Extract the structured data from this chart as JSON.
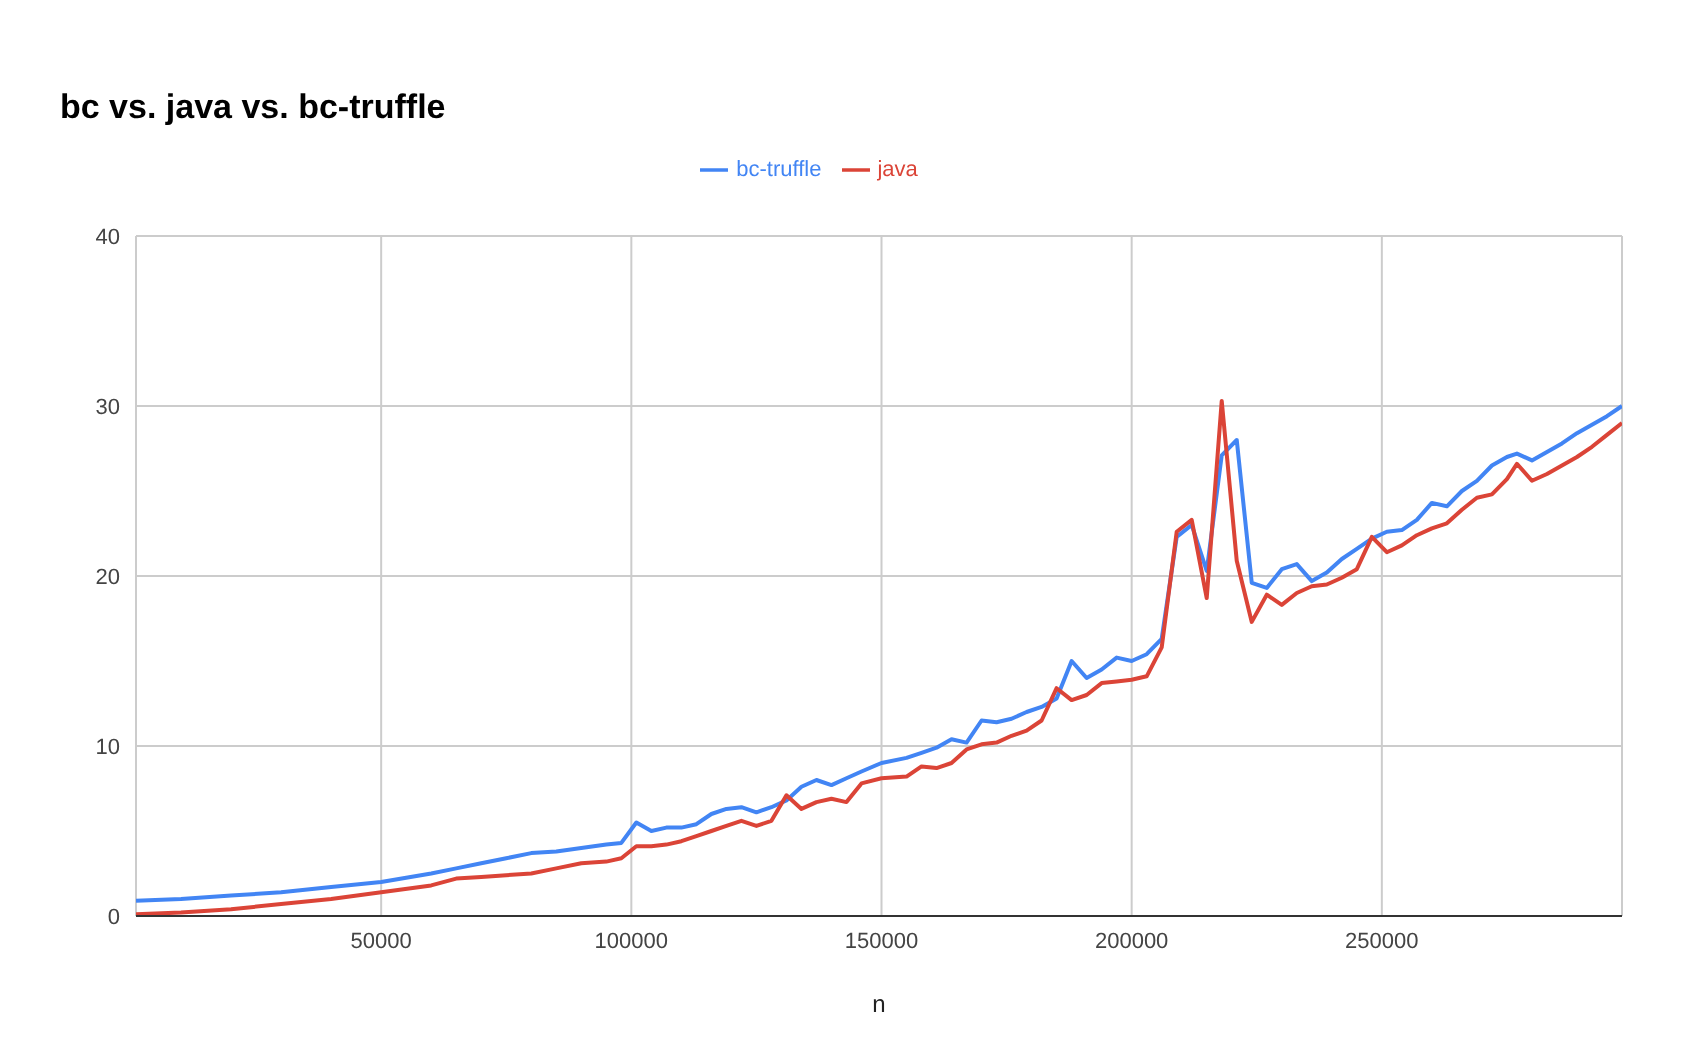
{
  "chart_data": {
    "type": "line",
    "title": "bc vs. java vs. bc-truffle",
    "xlabel": "n",
    "x": [
      1000,
      10000,
      20000,
      30000,
      40000,
      50000,
      60000,
      65000,
      70000,
      75000,
      80000,
      85000,
      90000,
      95000,
      98000,
      101000,
      104000,
      107000,
      110000,
      113000,
      116000,
      119000,
      122000,
      125000,
      128000,
      131000,
      134000,
      137000,
      140000,
      143000,
      146000,
      150000,
      155000,
      158000,
      161000,
      164000,
      167000,
      170000,
      173000,
      176000,
      179000,
      182000,
      185000,
      188000,
      191000,
      194000,
      197000,
      200000,
      203000,
      206000,
      209000,
      212000,
      215000,
      218000,
      221000,
      224000,
      227000,
      230000,
      233000,
      236000,
      239000,
      242000,
      245000,
      248000,
      251000,
      254000,
      257000,
      260000,
      263000,
      266000,
      269000,
      272000,
      275000,
      277000,
      280000,
      283000,
      286000,
      289000,
      292000,
      295000,
      298000
    ],
    "series": [
      {
        "name": "bc-truffle",
        "color": "#4285f4",
        "values": [
          0.9,
          1.0,
          1.2,
          1.4,
          1.7,
          2.0,
          2.5,
          2.8,
          3.1,
          3.4,
          3.7,
          3.8,
          4.0,
          4.2,
          4.3,
          5.5,
          5.0,
          5.2,
          5.2,
          5.4,
          6.0,
          6.3,
          6.4,
          6.1,
          6.4,
          6.8,
          7.6,
          8.0,
          7.7,
          8.1,
          8.5,
          9.0,
          9.3,
          9.6,
          9.9,
          10.4,
          10.2,
          11.5,
          11.4,
          11.6,
          12.0,
          12.3,
          12.8,
          15.0,
          14.0,
          14.5,
          15.2,
          15.0,
          15.4,
          16.3,
          22.3,
          23.0,
          20.3,
          27.1,
          28.0,
          19.6,
          19.3,
          20.4,
          20.7,
          19.7,
          20.2,
          21.0,
          21.6,
          22.2,
          22.6,
          22.7,
          23.3,
          24.3,
          24.1,
          25.0,
          25.6,
          26.5,
          27.0,
          27.2,
          26.8,
          27.3,
          27.8,
          28.4,
          28.9,
          29.4,
          30.0
        ]
      },
      {
        "name": "java",
        "color": "#db4437",
        "values": [
          0.1,
          0.2,
          0.4,
          0.7,
          1.0,
          1.4,
          1.8,
          2.2,
          2.3,
          2.4,
          2.5,
          2.8,
          3.1,
          3.2,
          3.4,
          4.1,
          4.1,
          4.2,
          4.4,
          4.7,
          5.0,
          5.3,
          5.6,
          5.3,
          5.6,
          7.1,
          6.3,
          6.7,
          6.9,
          6.7,
          7.8,
          8.1,
          8.2,
          8.8,
          8.7,
          9.0,
          9.8,
          10.1,
          10.2,
          10.6,
          10.9,
          11.5,
          13.4,
          12.7,
          13.0,
          13.7,
          13.8,
          13.9,
          14.1,
          15.8,
          22.6,
          23.3,
          18.7,
          30.3,
          20.9,
          17.3,
          18.9,
          18.3,
          19.0,
          19.4,
          19.5,
          19.9,
          20.4,
          22.3,
          21.4,
          21.8,
          22.4,
          22.8,
          23.1,
          23.9,
          24.6,
          24.8,
          25.7,
          26.6,
          25.6,
          26.0,
          26.5,
          27.0,
          27.6,
          28.3,
          29.0
        ]
      }
    ],
    "xlim": [
      1000,
      298000
    ],
    "xticks": [
      50000,
      100000,
      150000,
      200000,
      250000
    ],
    "ylim": [
      0,
      40
    ],
    "yticks": [
      0,
      10,
      20,
      30,
      40
    ],
    "grid": true,
    "legend": "top",
    "marker": "none",
    "line_style": "solid"
  }
}
